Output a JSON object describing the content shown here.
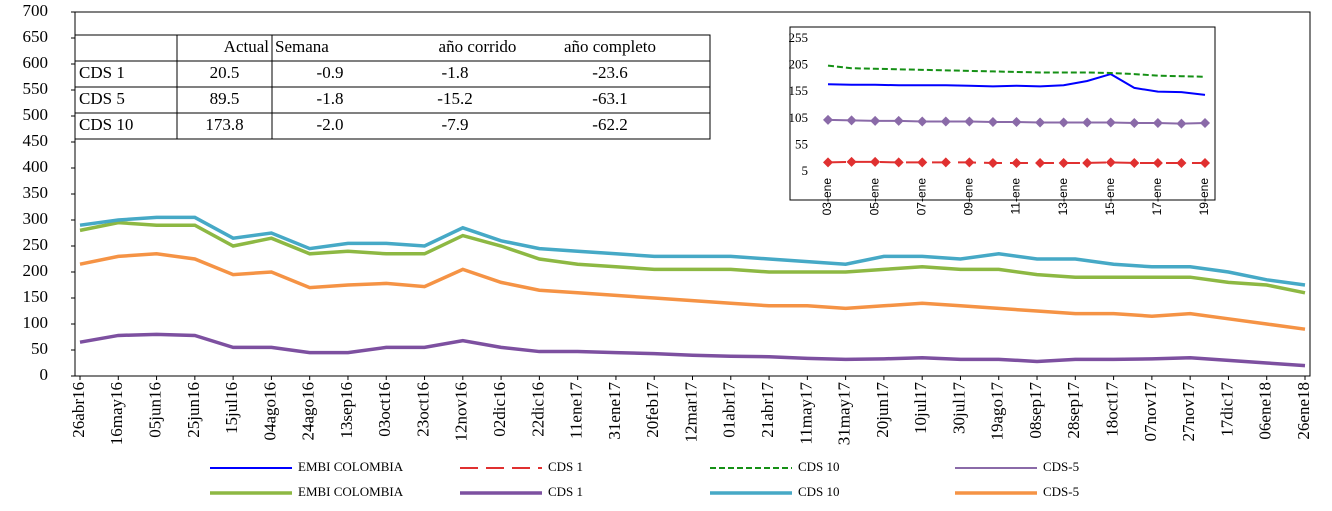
{
  "chart_data": [
    {
      "type": "line",
      "categories": [
        "26abr16",
        "16may16",
        "05jun16",
        "25jun16",
        "15jul16",
        "04ago16",
        "24ago16",
        "13sep16",
        "03oct16",
        "23oct16",
        "12nov16",
        "02dic16",
        "22dic16",
        "11ene17",
        "31ene17",
        "20feb17",
        "12mar17",
        "01abr17",
        "21abr17",
        "11may17",
        "31may17",
        "20jun17",
        "10jul17",
        "30jul17",
        "19ago17",
        "08sep17",
        "28sep17",
        "18oct17",
        "07nov17",
        "27nov17",
        "17dic17",
        "06ene18",
        "26ene18"
      ],
      "series": [
        {
          "name": "EMBI COLOMBIA",
          "color": "#8db843",
          "values": [
            280,
            295,
            290,
            290,
            250,
            265,
            235,
            240,
            235,
            235,
            270,
            250,
            225,
            215,
            210,
            205,
            205,
            205,
            200,
            200,
            200,
            205,
            210,
            205,
            205,
            195,
            190,
            190,
            190,
            190,
            180,
            175,
            160
          ]
        },
        {
          "name": "CDS 1",
          "color": "#7d50a0",
          "values": [
            65,
            78,
            80,
            78,
            55,
            55,
            45,
            45,
            55,
            55,
            68,
            55,
            47,
            47,
            45,
            43,
            40,
            38,
            37,
            34,
            32,
            33,
            35,
            32,
            32,
            28,
            32,
            32,
            33,
            35,
            30,
            25,
            20
          ]
        },
        {
          "name": "CDS 10",
          "color": "#46a9c6",
          "values": [
            290,
            300,
            305,
            305,
            265,
            275,
            245,
            255,
            255,
            250,
            285,
            260,
            245,
            240,
            235,
            230,
            230,
            230,
            225,
            220,
            215,
            230,
            230,
            225,
            235,
            225,
            225,
            215,
            210,
            210,
            200,
            185,
            175
          ]
        },
        {
          "name": "CDS-5",
          "color": "#f59345",
          "values": [
            215,
            230,
            235,
            225,
            195,
            200,
            170,
            175,
            178,
            172,
            205,
            180,
            165,
            160,
            155,
            150,
            145,
            140,
            135,
            135,
            130,
            135,
            140,
            135,
            130,
            125,
            120,
            120,
            115,
            120,
            110,
            100,
            90
          ]
        }
      ],
      "ylim": [
        0,
        700
      ],
      "yticks": [
        0,
        50,
        100,
        150,
        200,
        250,
        300,
        350,
        400,
        450,
        500,
        550,
        600,
        650,
        700
      ]
    },
    {
      "type": "line",
      "categories": [
        "03-ene",
        null,
        "05-ene",
        null,
        "07-ene",
        null,
        "09-ene",
        null,
        "11-ene",
        null,
        "13-ene",
        null,
        "15-ene",
        null,
        "17-ene",
        null,
        "19-ene"
      ],
      "series": [
        {
          "name": "EMBI COLOMBIA",
          "color": "#0000ff",
          "dash": false,
          "marker": false,
          "values": [
            170,
            169,
            169,
            168,
            168,
            168,
            167,
            166,
            167,
            166,
            168,
            176,
            189,
            163,
            156,
            155,
            150
          ]
        },
        {
          "name": "CDS 1",
          "color": "#e03030",
          "dash": true,
          "marker": true,
          "values": [
            23,
            24,
            24,
            23,
            23,
            23,
            23,
            22,
            22,
            22,
            22,
            22,
            23,
            22,
            22,
            22,
            22
          ]
        },
        {
          "name": "CDS 10",
          "color": "#159015",
          "dash": true,
          "marker": false,
          "values": [
            205,
            200,
            199,
            198,
            197,
            196,
            195,
            194,
            193,
            192,
            192,
            192,
            191,
            189,
            186,
            185,
            184
          ]
        },
        {
          "name": "CDS-5",
          "color": "#8a6aa8",
          "dash": false,
          "marker": true,
          "values": [
            103,
            102,
            101,
            101,
            100,
            100,
            100,
            99,
            99,
            98,
            98,
            98,
            98,
            97,
            97,
            96,
            97
          ]
        }
      ],
      "ylim": [
        5,
        285
      ],
      "yticks": [
        5,
        55,
        105,
        155,
        205,
        255
      ]
    }
  ],
  "table": {
    "header": [
      "Actual",
      "Semana",
      "año corrido",
      "año completo"
    ],
    "rows": [
      [
        "CDS 1",
        "20.5",
        "-0.9",
        "-1.8",
        "-23.6"
      ],
      [
        "CDS 5",
        "89.5",
        "-1.8",
        "-15.2",
        "-63.1"
      ],
      [
        "CDS 10",
        "173.8",
        "-2.0",
        "-7.9",
        "-62.2"
      ]
    ]
  }
}
